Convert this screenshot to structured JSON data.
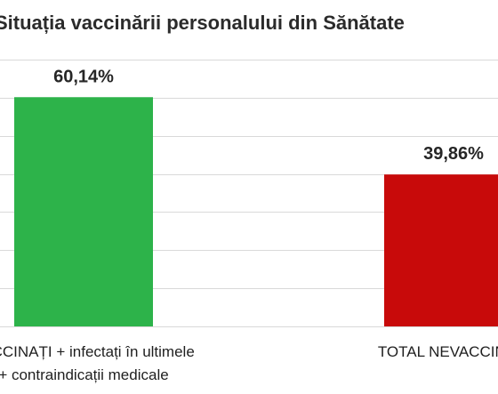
{
  "chart_data": {
    "type": "bar",
    "title": "Situația vaccinării personalului din Sănătate",
    "categories": [
      [
        "VACCINAȚI + infectați în ultimele",
        "+ contraindicații medicale"
      ],
      [
        "TOTAL NEVACCINAȚI"
      ]
    ],
    "values": [
      60.14,
      39.86
    ],
    "data_labels": [
      "60,14%",
      "39,86%"
    ],
    "colors": [
      "#2db34a",
      "#c80a0a"
    ],
    "ylim": [
      0,
      70
    ],
    "grid": true,
    "legend": "none"
  }
}
